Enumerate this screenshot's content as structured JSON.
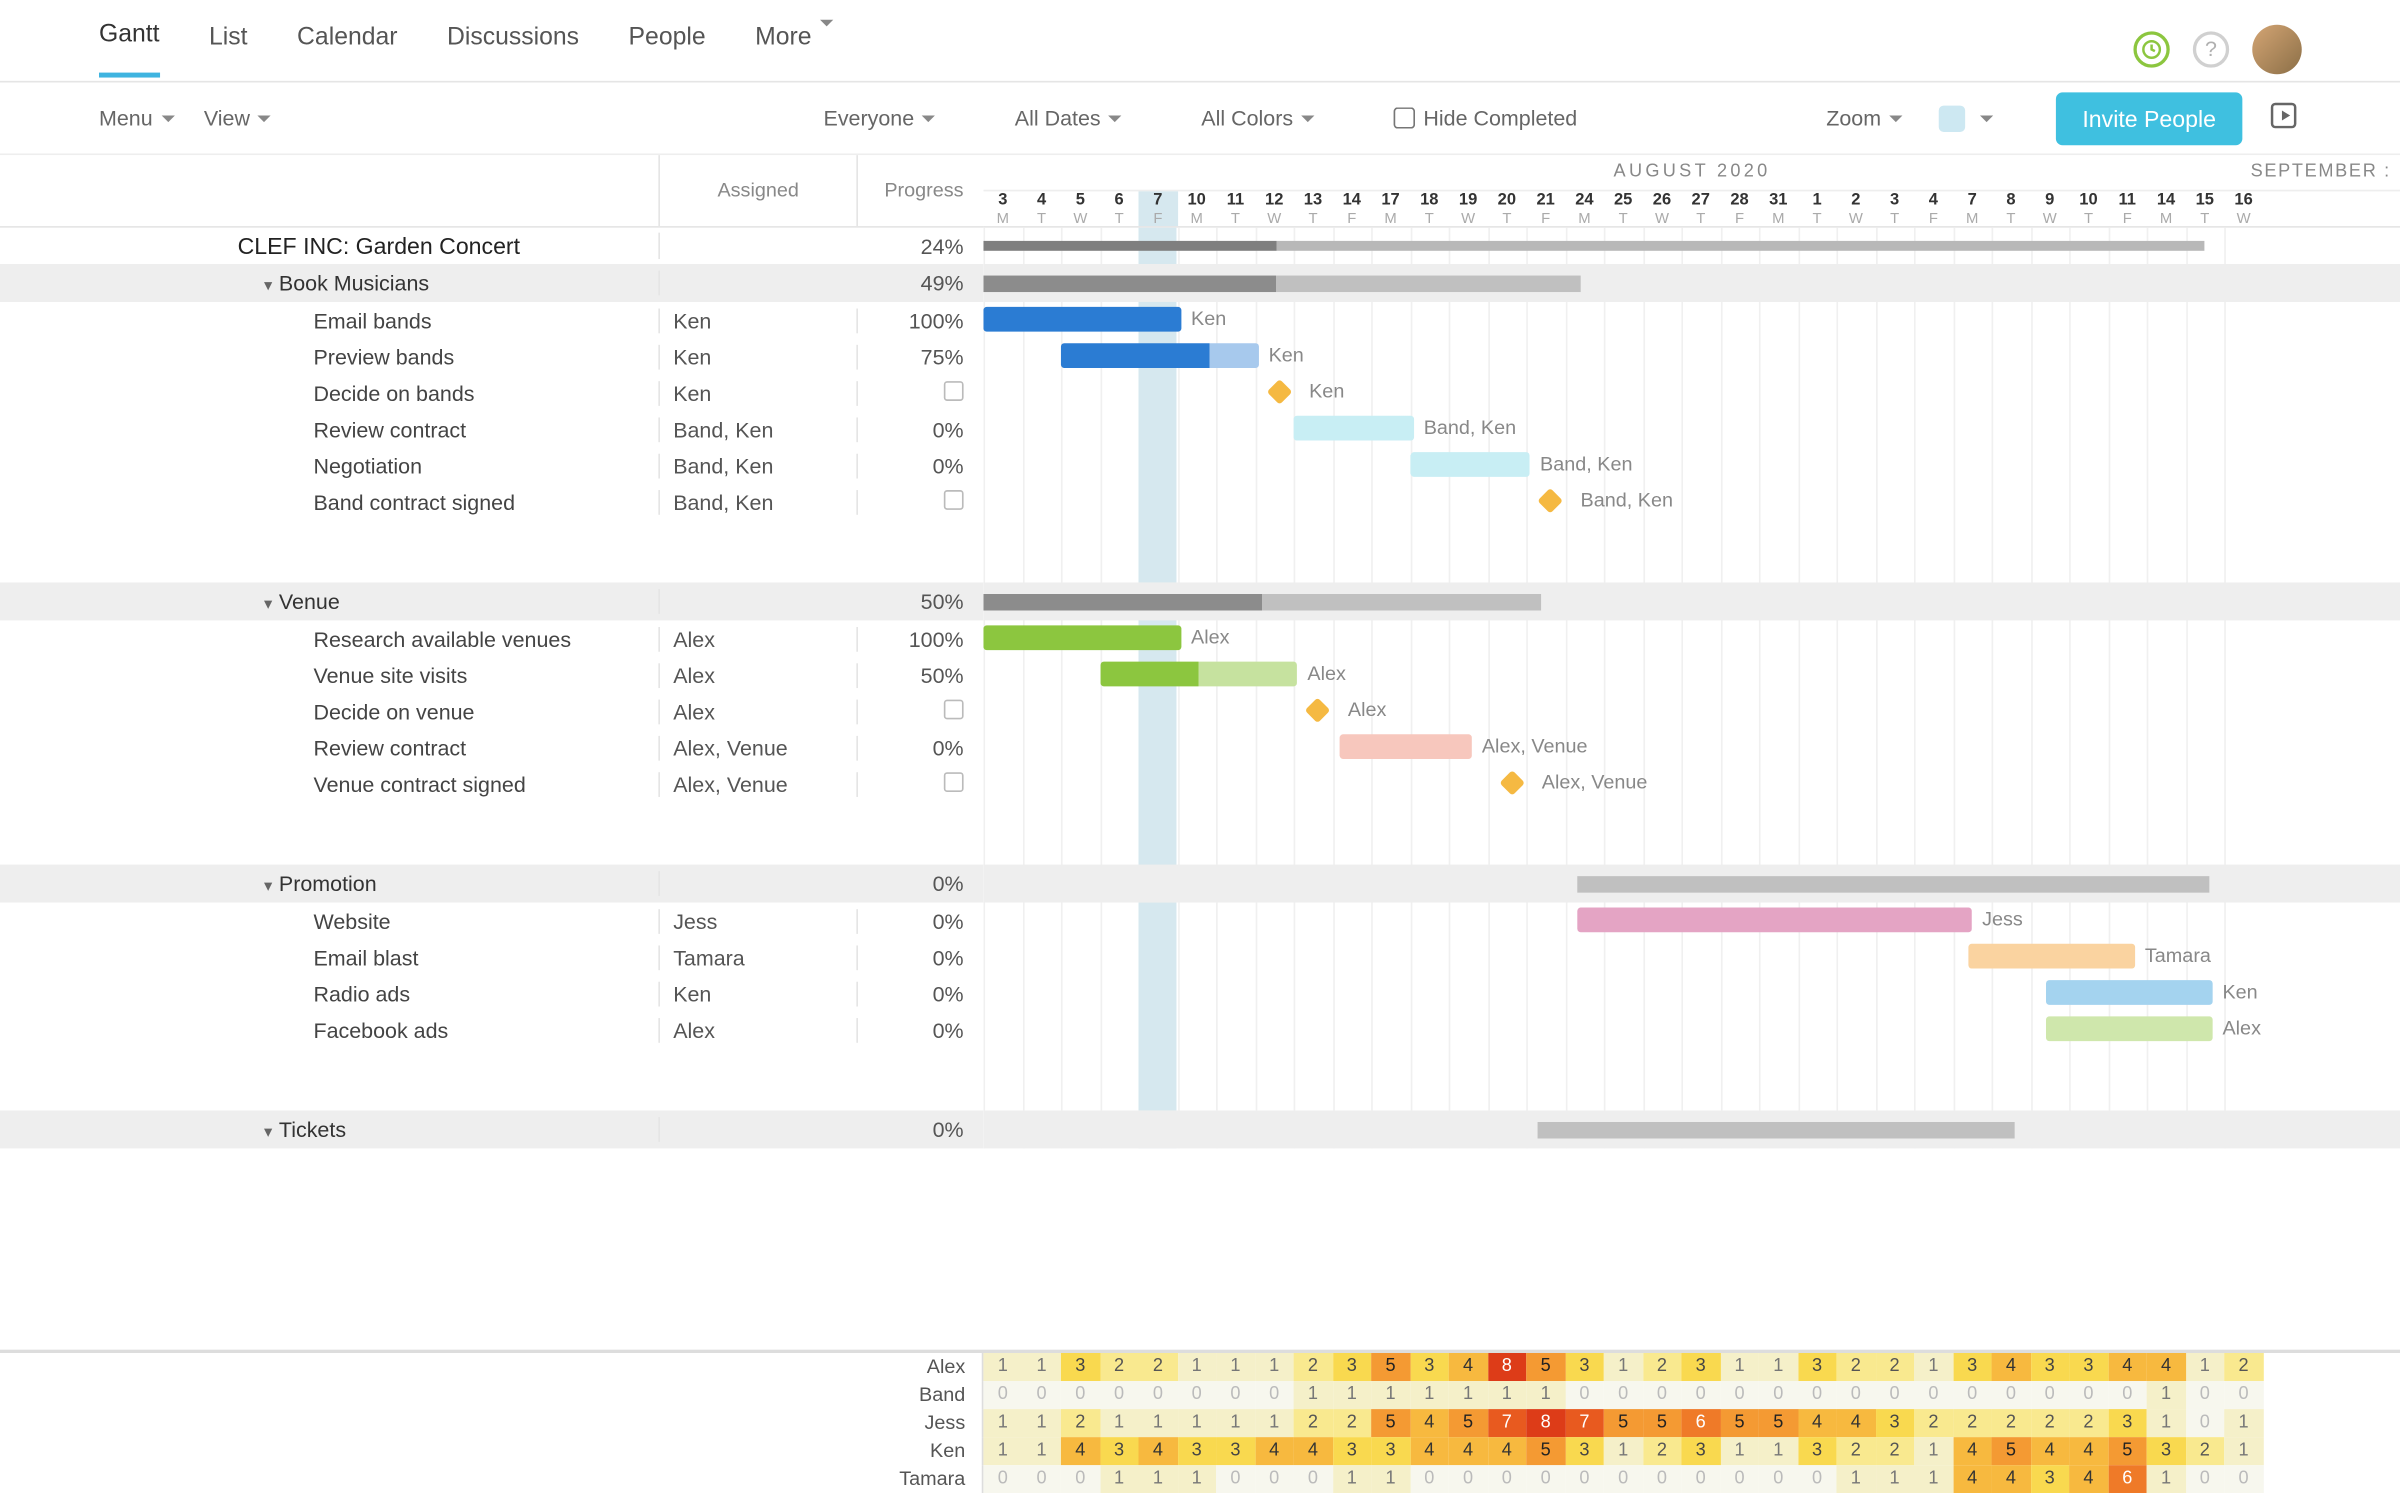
{
  "nav": {
    "tabs": [
      "Gantt",
      "List",
      "Calendar",
      "Discussions",
      "People",
      "More"
    ],
    "active": 0
  },
  "toolbar": {
    "menu": "Menu",
    "view": "View",
    "everyone": "Everyone",
    "dates": "All Dates",
    "colors": "All Colors",
    "hide": "Hide Completed",
    "zoom": "Zoom",
    "invite": "Invite People"
  },
  "cols": {
    "assigned": "Assigned",
    "progress": "Progress"
  },
  "timeline": {
    "month": "AUGUST 2020",
    "next": "SEPTEMBER :",
    "cell_w": 23.5,
    "today_idx": 4,
    "days": [
      {
        "n": "3",
        "d": "M"
      },
      {
        "n": "4",
        "d": "T"
      },
      {
        "n": "5",
        "d": "W"
      },
      {
        "n": "6",
        "d": "T"
      },
      {
        "n": "7",
        "d": "F"
      },
      {
        "n": "10",
        "d": "M"
      },
      {
        "n": "11",
        "d": "T"
      },
      {
        "n": "12",
        "d": "W"
      },
      {
        "n": "13",
        "d": "T"
      },
      {
        "n": "14",
        "d": "F"
      },
      {
        "n": "17",
        "d": "M"
      },
      {
        "n": "18",
        "d": "T"
      },
      {
        "n": "19",
        "d": "W"
      },
      {
        "n": "20",
        "d": "T"
      },
      {
        "n": "21",
        "d": "F"
      },
      {
        "n": "24",
        "d": "M"
      },
      {
        "n": "25",
        "d": "T"
      },
      {
        "n": "26",
        "d": "W"
      },
      {
        "n": "27",
        "d": "T"
      },
      {
        "n": "28",
        "d": "F"
      },
      {
        "n": "31",
        "d": "M"
      },
      {
        "n": "1",
        "d": "T"
      },
      {
        "n": "2",
        "d": "W"
      },
      {
        "n": "3",
        "d": "T"
      },
      {
        "n": "4",
        "d": "F"
      },
      {
        "n": "7",
        "d": "M"
      },
      {
        "n": "8",
        "d": "T"
      },
      {
        "n": "9",
        "d": "W"
      },
      {
        "n": "10",
        "d": "T"
      },
      {
        "n": "11",
        "d": "F"
      },
      {
        "n": "14",
        "d": "M"
      },
      {
        "n": "15",
        "d": "T"
      },
      {
        "n": "16",
        "d": "W"
      }
    ]
  },
  "rows": [
    {
      "type": "proj",
      "name": "CLEF INC: Garden Concert",
      "assigned": "",
      "progress": "24%",
      "bar": {
        "kind": "summary_proj",
        "start": 0,
        "len": 31.5,
        "prog": 0.24,
        "c1": "#7f7f7f",
        "c2": "#b8b8b8"
      }
    },
    {
      "type": "group",
      "name": "Book Musicians",
      "assigned": "",
      "progress": "49%",
      "bar": {
        "kind": "summary",
        "start": 0,
        "len": 15.4,
        "prog": 0.49,
        "c1": "#8c8c8c",
        "c2": "#c0c0c0"
      }
    },
    {
      "type": "task",
      "name": "Email bands",
      "assigned": "Ken",
      "progress": "100%",
      "bar": {
        "kind": "bar",
        "start": 0,
        "len": 5.1,
        "prog": 1,
        "c1": "#2b7cd3",
        "c2": "#a7c9ed",
        "label": "Ken"
      }
    },
    {
      "type": "task",
      "name": "Preview bands",
      "assigned": "Ken",
      "progress": "75%",
      "bar": {
        "kind": "bar",
        "start": 2,
        "len": 5.1,
        "prog": 0.75,
        "c1": "#2b7cd3",
        "c2": "#a7c9ed",
        "label": "Ken"
      }
    },
    {
      "type": "task",
      "name": "Decide on bands",
      "assigned": "Ken",
      "progress": "",
      "check": true,
      "bar": {
        "kind": "diamond",
        "start": 7.4,
        "color": "#f5b942",
        "label": "Ken"
      }
    },
    {
      "type": "task",
      "name": "Review contract",
      "assigned": "Band, Ken",
      "progress": "0%",
      "bar": {
        "kind": "bar",
        "start": 8,
        "len": 3.1,
        "prog": 0,
        "c1": "#7fd9e8",
        "c2": "#c8eef4",
        "label": "Band, Ken"
      }
    },
    {
      "type": "task",
      "name": "Negotiation",
      "assigned": "Band, Ken",
      "progress": "0%",
      "bar": {
        "kind": "bar",
        "start": 11,
        "len": 3.1,
        "prog": 0,
        "c1": "#7fd9e8",
        "c2": "#c8eef4",
        "label": "Band, Ken"
      }
    },
    {
      "type": "task",
      "name": "Band contract signed",
      "assigned": "Band, Ken",
      "progress": "",
      "check": true,
      "bar": {
        "kind": "diamond",
        "start": 14.4,
        "color": "#f5b942",
        "label": "Band, Ken"
      }
    },
    {
      "type": "blank"
    },
    {
      "type": "group",
      "name": "Venue",
      "assigned": "",
      "progress": "50%",
      "bar": {
        "kind": "summary",
        "start": 0,
        "len": 14.4,
        "prog": 0.5,
        "c1": "#8c8c8c",
        "c2": "#c0c0c0"
      }
    },
    {
      "type": "task",
      "name": "Research available venues",
      "assigned": "Alex",
      "progress": "100%",
      "bar": {
        "kind": "bar",
        "start": 0,
        "len": 5.1,
        "prog": 1,
        "c1": "#8cc63f",
        "c2": "#c6e29f",
        "label": "Alex"
      }
    },
    {
      "type": "task",
      "name": "Venue site visits",
      "assigned": "Alex",
      "progress": "50%",
      "bar": {
        "kind": "bar",
        "start": 3,
        "len": 5.1,
        "prog": 0.5,
        "c1": "#8cc63f",
        "c2": "#c6e29f",
        "label": "Alex"
      }
    },
    {
      "type": "task",
      "name": "Decide on venue",
      "assigned": "Alex",
      "progress": "",
      "check": true,
      "bar": {
        "kind": "diamond",
        "start": 8.4,
        "color": "#f5b942",
        "label": "Alex"
      }
    },
    {
      "type": "task",
      "name": "Review contract",
      "assigned": "Alex, Venue",
      "progress": "0%",
      "bar": {
        "kind": "bar",
        "start": 9.2,
        "len": 3.4,
        "prog": 0,
        "c1": "#ef8f7a",
        "c2": "#f7c7bd",
        "label": "Alex, Venue"
      }
    },
    {
      "type": "task",
      "name": "Venue contract signed",
      "assigned": "Alex, Venue",
      "progress": "",
      "check": true,
      "bar": {
        "kind": "diamond",
        "start": 13.4,
        "color": "#f5b942",
        "label": "Alex, Venue"
      }
    },
    {
      "type": "blank"
    },
    {
      "type": "group",
      "name": "Promotion",
      "assigned": "",
      "progress": "0%",
      "bar": {
        "kind": "summary",
        "start": 15.3,
        "len": 16.3,
        "prog": 0,
        "c1": "#8c8c8c",
        "c2": "#c0c0c0"
      }
    },
    {
      "type": "task",
      "name": "Website",
      "assigned": "Jess",
      "progress": "0%",
      "bar": {
        "kind": "bar",
        "start": 15.3,
        "len": 10.2,
        "prog": 0,
        "c1": "#c94a8a",
        "c2": "#e4a4c4",
        "label": "Jess"
      }
    },
    {
      "type": "task",
      "name": "Email blast",
      "assigned": "Tamara",
      "progress": "0%",
      "bar": {
        "kind": "bar",
        "start": 25.4,
        "len": 4.3,
        "prog": 0,
        "c1": "#f5a742",
        "c2": "#fad3a0",
        "label": "Tamara"
      }
    },
    {
      "type": "task",
      "name": "Radio ads",
      "assigned": "Ken",
      "progress": "0%",
      "bar": {
        "kind": "bar",
        "start": 27.4,
        "len": 4.3,
        "prog": 0,
        "c1": "#4aa8e0",
        "c2": "#a4d3ef",
        "label": "Ken"
      }
    },
    {
      "type": "task",
      "name": "Facebook ads",
      "assigned": "Alex",
      "progress": "0%",
      "bar": {
        "kind": "bar",
        "start": 27.4,
        "len": 4.3,
        "prog": 0,
        "c1": "#9fd05a",
        "c2": "#cfe7ac",
        "label": "Alex"
      }
    },
    {
      "type": "blank"
    },
    {
      "type": "group",
      "name": "Tickets",
      "assigned": "",
      "progress": "0%",
      "bar": {
        "kind": "summary",
        "start": 14.3,
        "len": 12.3,
        "prog": 0,
        "c1": "#8c8c8c",
        "c2": "#c0c0c0"
      }
    }
  ],
  "workload": {
    "people": [
      "Alex",
      "Band",
      "Jess",
      "Ken",
      "Tamara"
    ],
    "data": [
      [
        1,
        1,
        3,
        2,
        2,
        1,
        1,
        1,
        2,
        3,
        5,
        3,
        4,
        8,
        5,
        3,
        1,
        2,
        3,
        1,
        1,
        3,
        2,
        2,
        1,
        3,
        4,
        3,
        3,
        4,
        4,
        1,
        2
      ],
      [
        0,
        0,
        0,
        0,
        0,
        0,
        0,
        0,
        1,
        1,
        1,
        1,
        1,
        1,
        1,
        0,
        0,
        0,
        0,
        0,
        0,
        0,
        0,
        0,
        0,
        0,
        0,
        0,
        0,
        0,
        1,
        0,
        0
      ],
      [
        1,
        1,
        2,
        1,
        1,
        1,
        1,
        1,
        2,
        2,
        5,
        4,
        5,
        7,
        8,
        7,
        5,
        5,
        6,
        5,
        5,
        4,
        4,
        3,
        2,
        2,
        2,
        2,
        2,
        3,
        1,
        0,
        1
      ],
      [
        1,
        1,
        4,
        3,
        4,
        3,
        3,
        4,
        4,
        3,
        3,
        4,
        4,
        4,
        5,
        3,
        1,
        2,
        3,
        1,
        1,
        3,
        2,
        2,
        1,
        4,
        5,
        4,
        4,
        5,
        3,
        2,
        1
      ],
      [
        0,
        0,
        0,
        1,
        1,
        1,
        0,
        0,
        0,
        1,
        1,
        0,
        0,
        0,
        0,
        0,
        0,
        0,
        0,
        0,
        0,
        0,
        1,
        1,
        1,
        4,
        4,
        3,
        4,
        6,
        1,
        0,
        0
      ]
    ]
  }
}
